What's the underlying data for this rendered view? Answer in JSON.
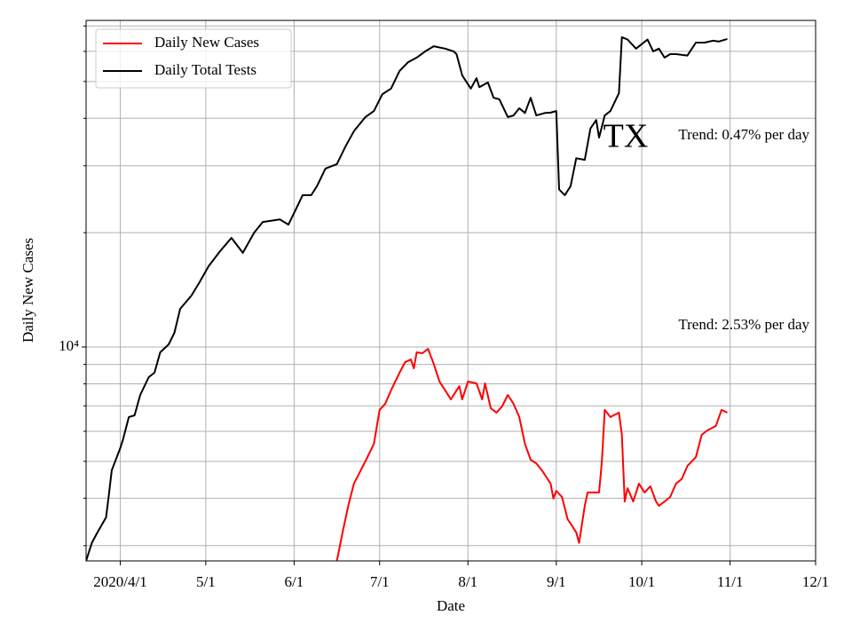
{
  "chart_data": {
    "type": "line",
    "yscale": "log",
    "grid": true,
    "legend": "upper left",
    "xlabel": "Date",
    "ylabel": "Daily New Cases",
    "annotations": [
      "TX",
      "Trend: 0.47% per day",
      "Trend: 2.53% per day"
    ],
    "xlim": [
      "2020-03-20",
      "2020-12-01"
    ],
    "xticks": [
      {
        "value": "2020-04-01",
        "label": "2020/4/1"
      },
      {
        "value": "2020-05-01",
        "label": "5/1"
      },
      {
        "value": "2020-06-01",
        "label": "6/1"
      },
      {
        "value": "2020-07-01",
        "label": "7/1"
      },
      {
        "value": "2020-08-01",
        "label": "8/1"
      },
      {
        "value": "2020-09-01",
        "label": "9/1"
      },
      {
        "value": "2020-10-01",
        "label": "10/1"
      },
      {
        "value": "2020-11-01",
        "label": "11/1"
      },
      {
        "value": "2020-12-01",
        "label": "12/1"
      }
    ],
    "ylim": [
      2735,
      72400
    ],
    "yticks": [
      {
        "value": 10000,
        "label": "10⁴"
      }
    ],
    "yminorticks": [
      3000,
      4000,
      5000,
      6000,
      7000,
      8000,
      9000,
      20000,
      30000,
      40000,
      50000,
      60000,
      70000
    ],
    "series": [
      {
        "name": "Daily New Cases",
        "color": "#ff0000",
        "x": [
          "2020-06-16",
          "2020-06-18",
          "2020-06-20",
          "2020-06-22",
          "2020-06-26",
          "2020-06-29",
          "2020-07-01",
          "2020-07-03",
          "2020-07-05",
          "2020-07-08",
          "2020-07-10",
          "2020-07-12",
          "2020-07-13",
          "2020-07-14",
          "2020-07-16",
          "2020-07-18",
          "2020-07-20",
          "2020-07-22",
          "2020-07-24",
          "2020-07-26",
          "2020-07-29",
          "2020-07-30",
          "2020-08-01",
          "2020-08-04",
          "2020-08-06",
          "2020-08-07",
          "2020-08-09",
          "2020-08-11",
          "2020-08-13",
          "2020-08-15",
          "2020-08-17",
          "2020-08-19",
          "2020-08-21",
          "2020-08-23",
          "2020-08-25",
          "2020-08-27",
          "2020-08-30",
          "2020-08-31",
          "2020-09-01",
          "2020-09-03",
          "2020-09-05",
          "2020-09-06",
          "2020-09-08",
          "2020-09-09",
          "2020-09-11",
          "2020-09-12",
          "2020-09-14",
          "2020-09-16",
          "2020-09-17",
          "2020-09-18",
          "2020-09-20",
          "2020-09-23",
          "2020-09-24",
          "2020-09-25",
          "2020-09-26",
          "2020-09-28",
          "2020-09-30",
          "2020-10-02",
          "2020-10-04",
          "2020-10-06",
          "2020-10-07",
          "2020-10-09",
          "2020-10-11",
          "2020-10-13",
          "2020-10-15",
          "2020-10-17",
          "2020-10-20",
          "2020-10-22",
          "2020-10-24",
          "2020-10-27",
          "2020-10-29",
          "2020-10-31"
        ],
        "values": [
          2735,
          3250,
          3820,
          4370,
          5000,
          5560,
          6830,
          7090,
          7690,
          8560,
          9130,
          9270,
          8790,
          9680,
          9630,
          9890,
          9030,
          8110,
          7690,
          7280,
          7890,
          7280,
          8110,
          8020,
          7280,
          8020,
          6900,
          6720,
          6980,
          7480,
          7090,
          6540,
          5560,
          5050,
          4940,
          4730,
          4370,
          3990,
          4180,
          4030,
          3520,
          3430,
          3250,
          3050,
          3820,
          4140,
          4140,
          4140,
          5000,
          6830,
          6540,
          6720,
          5870,
          3920,
          4250,
          3920,
          4370,
          4140,
          4300,
          3920,
          3820,
          3920,
          4030,
          4370,
          4490,
          4860,
          5130,
          5870,
          6030,
          6200,
          6830,
          6720
        ]
      },
      {
        "name": "Daily Total Tests",
        "color": "#000000",
        "x": [
          "2020-03-20",
          "2020-03-22",
          "2020-03-24",
          "2020-03-27",
          "2020-03-28",
          "2020-03-29",
          "2020-04-01",
          "2020-04-02",
          "2020-04-04",
          "2020-04-06",
          "2020-04-08",
          "2020-04-11",
          "2020-04-13",
          "2020-04-15",
          "2020-04-18",
          "2020-04-20",
          "2020-04-22",
          "2020-04-26",
          "2020-04-29",
          "2020-05-02",
          "2020-05-06",
          "2020-05-10",
          "2020-05-14",
          "2020-05-18",
          "2020-05-21",
          "2020-05-27",
          "2020-05-30",
          "2020-06-01",
          "2020-06-04",
          "2020-06-07",
          "2020-06-09",
          "2020-06-12",
          "2020-06-16",
          "2020-06-19",
          "2020-06-22",
          "2020-06-26",
          "2020-06-29",
          "2020-07-02",
          "2020-07-05",
          "2020-07-08",
          "2020-07-11",
          "2020-07-14",
          "2020-07-17",
          "2020-07-20",
          "2020-07-24",
          "2020-07-27",
          "2020-07-28",
          "2020-07-30",
          "2020-08-02",
          "2020-08-04",
          "2020-08-05",
          "2020-08-08",
          "2020-08-10",
          "2020-08-12",
          "2020-08-15",
          "2020-08-17",
          "2020-08-19",
          "2020-08-21",
          "2020-08-23",
          "2020-08-25",
          "2020-08-28",
          "2020-08-30",
          "2020-09-01",
          "2020-09-02",
          "2020-09-04",
          "2020-09-06",
          "2020-09-08",
          "2020-09-11",
          "2020-09-13",
          "2020-09-15",
          "2020-09-16",
          "2020-09-18",
          "2020-09-20",
          "2020-09-23",
          "2020-09-24",
          "2020-09-26",
          "2020-09-29",
          "2020-10-03",
          "2020-10-05",
          "2020-10-07",
          "2020-10-09",
          "2020-10-11",
          "2020-10-13",
          "2020-10-17",
          "2020-10-20",
          "2020-10-23",
          "2020-10-26",
          "2020-10-28",
          "2020-10-31"
        ],
        "values": [
          2735,
          3048,
          3250,
          3560,
          4090,
          4735,
          5420,
          5720,
          6540,
          6610,
          7480,
          8330,
          8560,
          9680,
          10160,
          10900,
          12600,
          13670,
          14890,
          16320,
          17870,
          19380,
          17700,
          20000,
          21340,
          21680,
          21000,
          22540,
          25100,
          25100,
          26500,
          29500,
          30300,
          33700,
          37000,
          40300,
          41800,
          46300,
          47900,
          53300,
          56200,
          57800,
          60000,
          61900,
          61000,
          60000,
          59000,
          51900,
          47900,
          51000,
          48300,
          49700,
          45300,
          44900,
          40300,
          40700,
          42500,
          41300,
          45300,
          40700,
          41300,
          41400,
          41800,
          26000,
          25100,
          26500,
          31400,
          31100,
          37600,
          39600,
          35600,
          40700,
          41800,
          46600,
          65400,
          64500,
          61000,
          64500,
          60000,
          61000,
          57800,
          59000,
          59000,
          58500,
          63300,
          63300,
          64000,
          63700,
          64700
        ]
      }
    ]
  }
}
